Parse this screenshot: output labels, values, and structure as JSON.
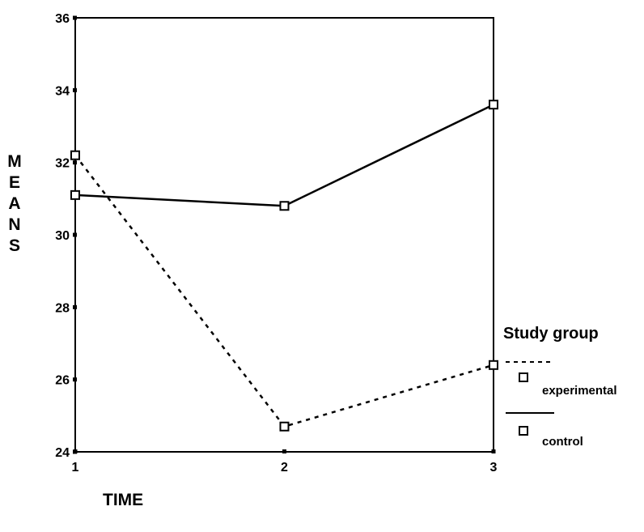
{
  "chart_data": {
    "type": "line",
    "title": "",
    "xlabel": "TIME",
    "ylabel": "MEANS",
    "x": [
      1,
      2,
      3
    ],
    "xlim": [
      1,
      3
    ],
    "ylim": [
      24,
      36
    ],
    "yticks": [
      24,
      26,
      28,
      30,
      32,
      34,
      36
    ],
    "xticks": [
      1,
      2,
      3
    ],
    "grid": false,
    "legend": {
      "title": "Study group",
      "placement": "right"
    },
    "series": [
      {
        "name": "experimental",
        "line_style": "dashed",
        "marker": "square",
        "values": [
          32.2,
          24.7,
          26.4
        ]
      },
      {
        "name": "control",
        "line_style": "solid",
        "marker": "square",
        "values": [
          31.1,
          30.8,
          33.6
        ]
      }
    ],
    "colors": {
      "line": "#000000",
      "background": "#ffffff"
    }
  }
}
